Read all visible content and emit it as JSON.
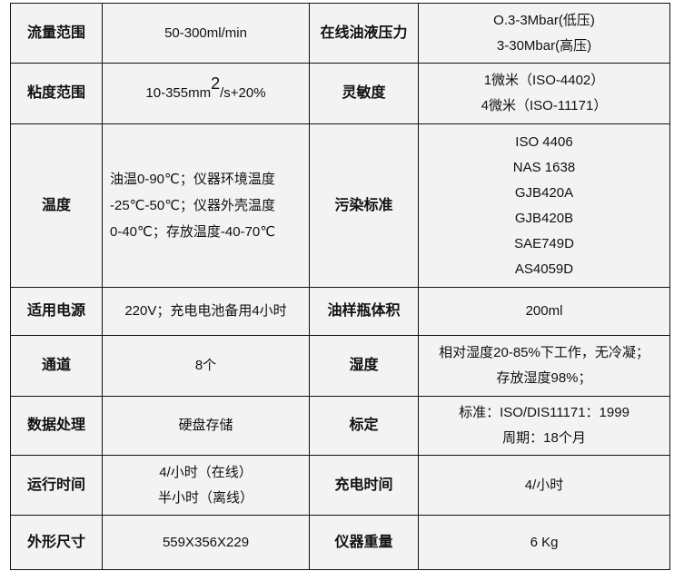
{
  "rows": [
    {
      "k1": "流量范围",
      "v1": [
        "50-300ml/min"
      ],
      "k2": "在线油液压力",
      "v2": [
        "O.3-3Mbar(低压)",
        "3-30Mbar(高压)"
      ]
    },
    {
      "k1": "粘度范围",
      "v1_parts": {
        "base": "10-355mm",
        "sup": "2",
        "rest": "/s+20%"
      },
      "k2": "灵敏度",
      "v2": [
        "1微米（ISO-4402）",
        "4微米（ISO-11171）"
      ]
    },
    {
      "k1": "温度",
      "v1": [
        "油温0-90℃；仪器环境温度",
        "-25℃-50℃；仪器外壳温度",
        "0-40℃；存放温度-40-70℃"
      ],
      "k2": "污染标准",
      "v2": [
        "ISO 4406",
        "NAS 1638",
        "GJB420A",
        "GJB420B",
        "SAE749D",
        "AS4059D"
      ]
    },
    {
      "k1": "适用电源",
      "v1": [
        "220V；充电电池备用4小时"
      ],
      "k2": "油样瓶体积",
      "v2": [
        "200ml"
      ]
    },
    {
      "k1": "通道",
      "v1": [
        "8个"
      ],
      "k2": "湿度",
      "v2": [
        "相对湿度20-85%下工作，无冷凝；",
        "存放湿度98%；"
      ]
    },
    {
      "k1": "数据处理",
      "v1": [
        "硬盘存储"
      ],
      "k2": "标定",
      "v2": [
        "标准：ISO/DIS11171：1999",
        "周期：18个月"
      ]
    },
    {
      "k1": "运行时间",
      "v1": [
        "4/小时（在线）",
        "半小时（离线）"
      ],
      "k2": "充电时间",
      "v2": [
        "4/小时"
      ]
    },
    {
      "k1": "外形尺寸",
      "v1": [
        "559X356X229"
      ],
      "k2": "仪器重量",
      "v2": [
        "6 Kg"
      ]
    }
  ]
}
